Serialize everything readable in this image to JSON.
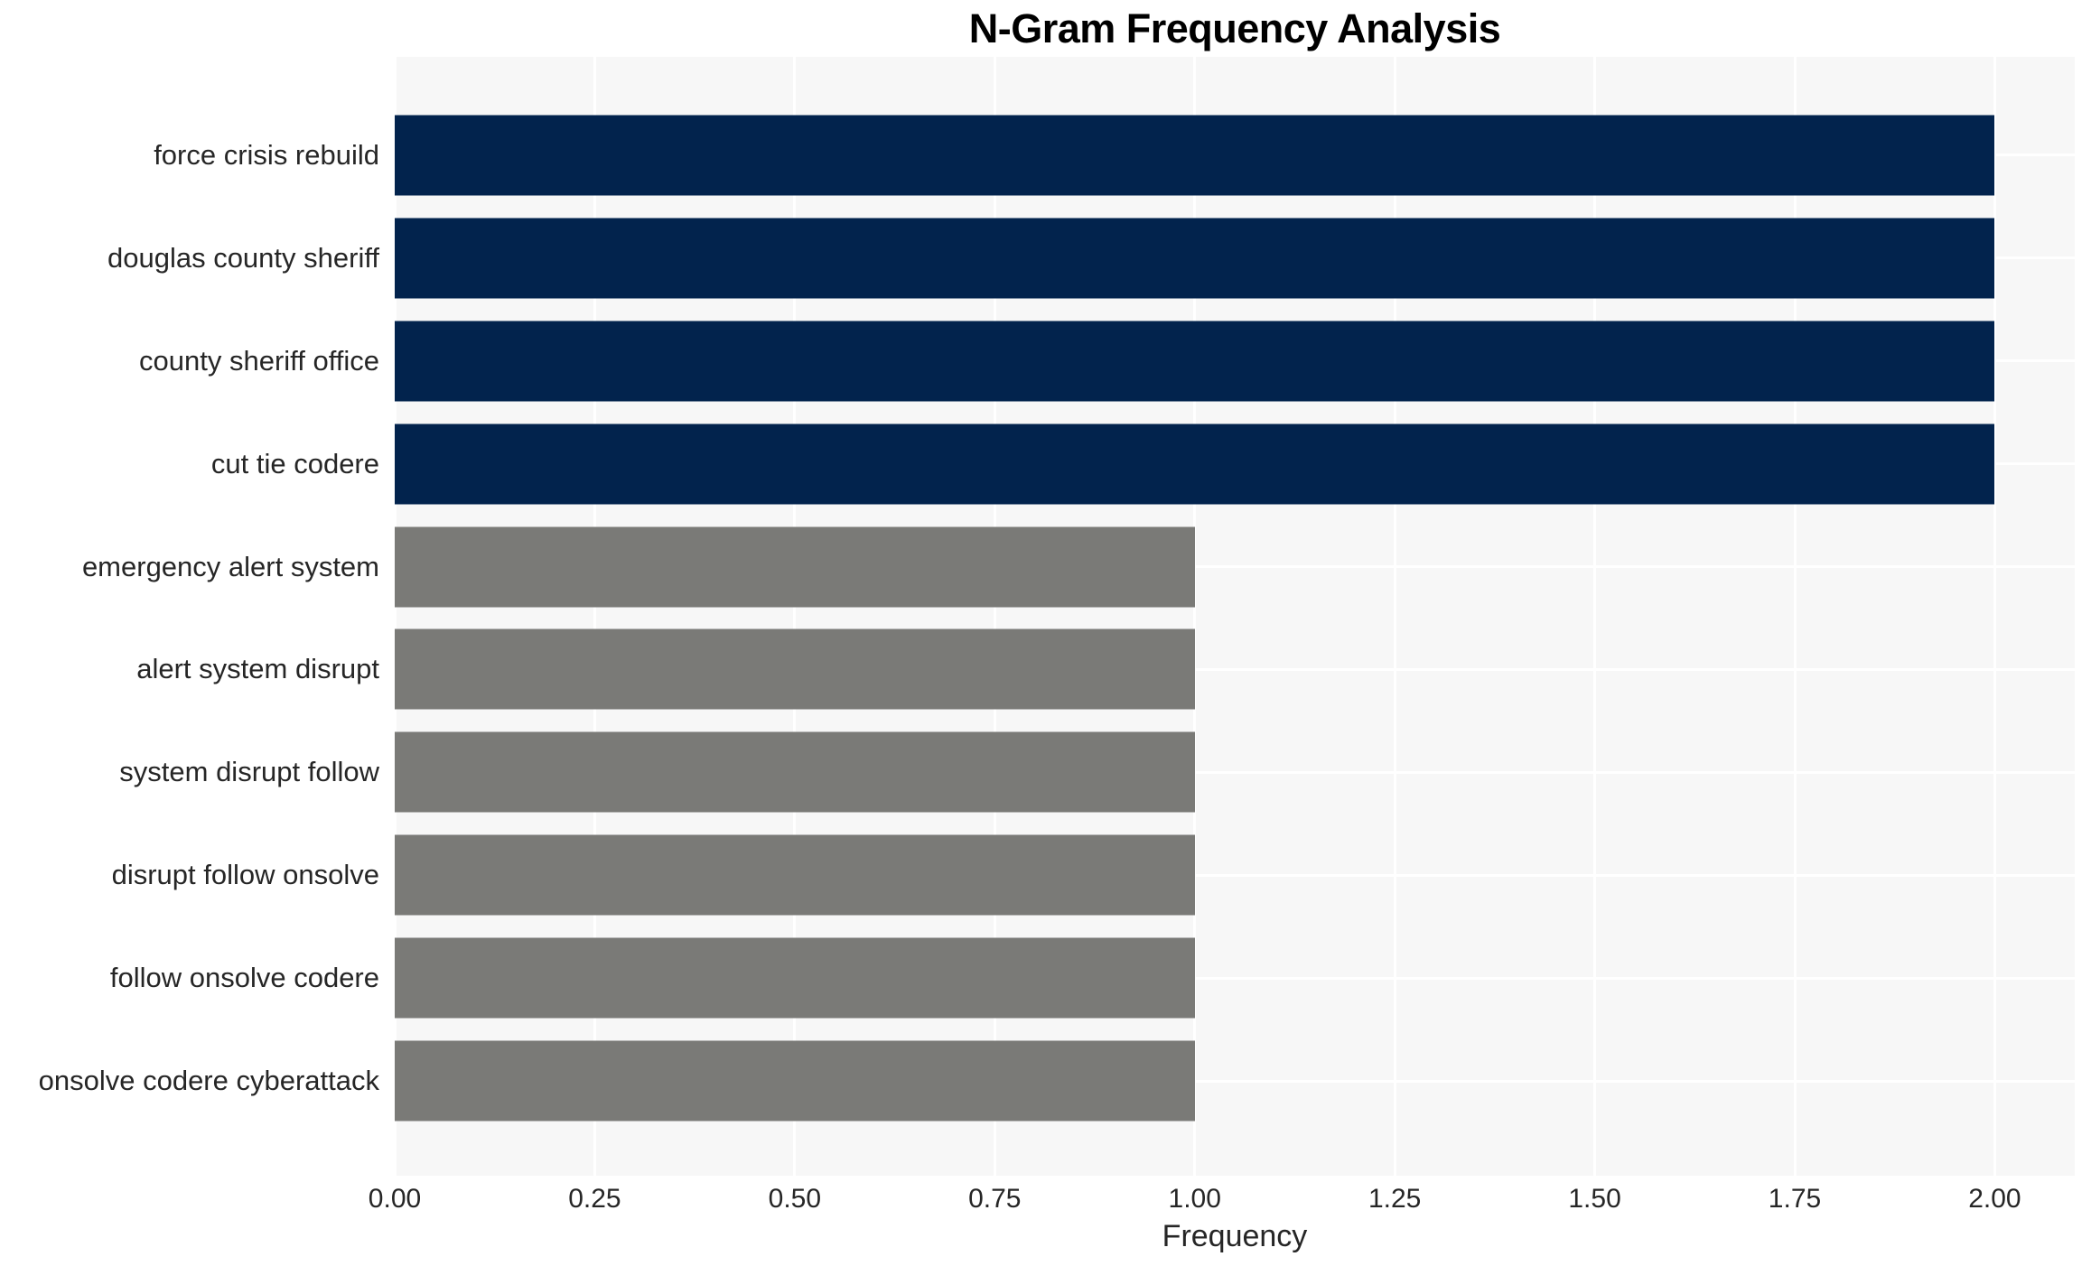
{
  "chart_data": {
    "type": "bar",
    "orientation": "horizontal",
    "title": "N-Gram Frequency Analysis",
    "xlabel": "Frequency",
    "ylabel": "",
    "categories": [
      "force crisis rebuild",
      "douglas county sheriff",
      "county sheriff office",
      "cut tie codere",
      "emergency alert system",
      "alert system disrupt",
      "system disrupt follow",
      "disrupt follow onsolve",
      "follow onsolve codere",
      "onsolve codere cyberattack"
    ],
    "values": [
      2,
      2,
      2,
      2,
      1,
      1,
      1,
      1,
      1,
      1
    ],
    "bar_colors": [
      "#02234d",
      "#02234d",
      "#02234d",
      "#02234d",
      "#7a7a77",
      "#7a7a77",
      "#7a7a77",
      "#7a7a77",
      "#7a7a77",
      "#7a7a77"
    ],
    "xlim": [
      0,
      2.1
    ],
    "xticks": [
      "0.00",
      "0.25",
      "0.50",
      "0.75",
      "1.00",
      "1.25",
      "1.50",
      "1.75",
      "2.00"
    ],
    "xtick_values": [
      0,
      0.25,
      0.5,
      0.75,
      1.0,
      1.25,
      1.5,
      1.75,
      2.0
    ],
    "grid": true,
    "legend": "none",
    "colors": {
      "high_freq_bar": "#02234d",
      "low_freq_bar": "#7a7a77",
      "plot_background": "#f7f7f7",
      "gridline": "#ffffff",
      "tick_text": "#262626",
      "title_text": "#000000",
      "figure_background": "#ffffff"
    }
  }
}
